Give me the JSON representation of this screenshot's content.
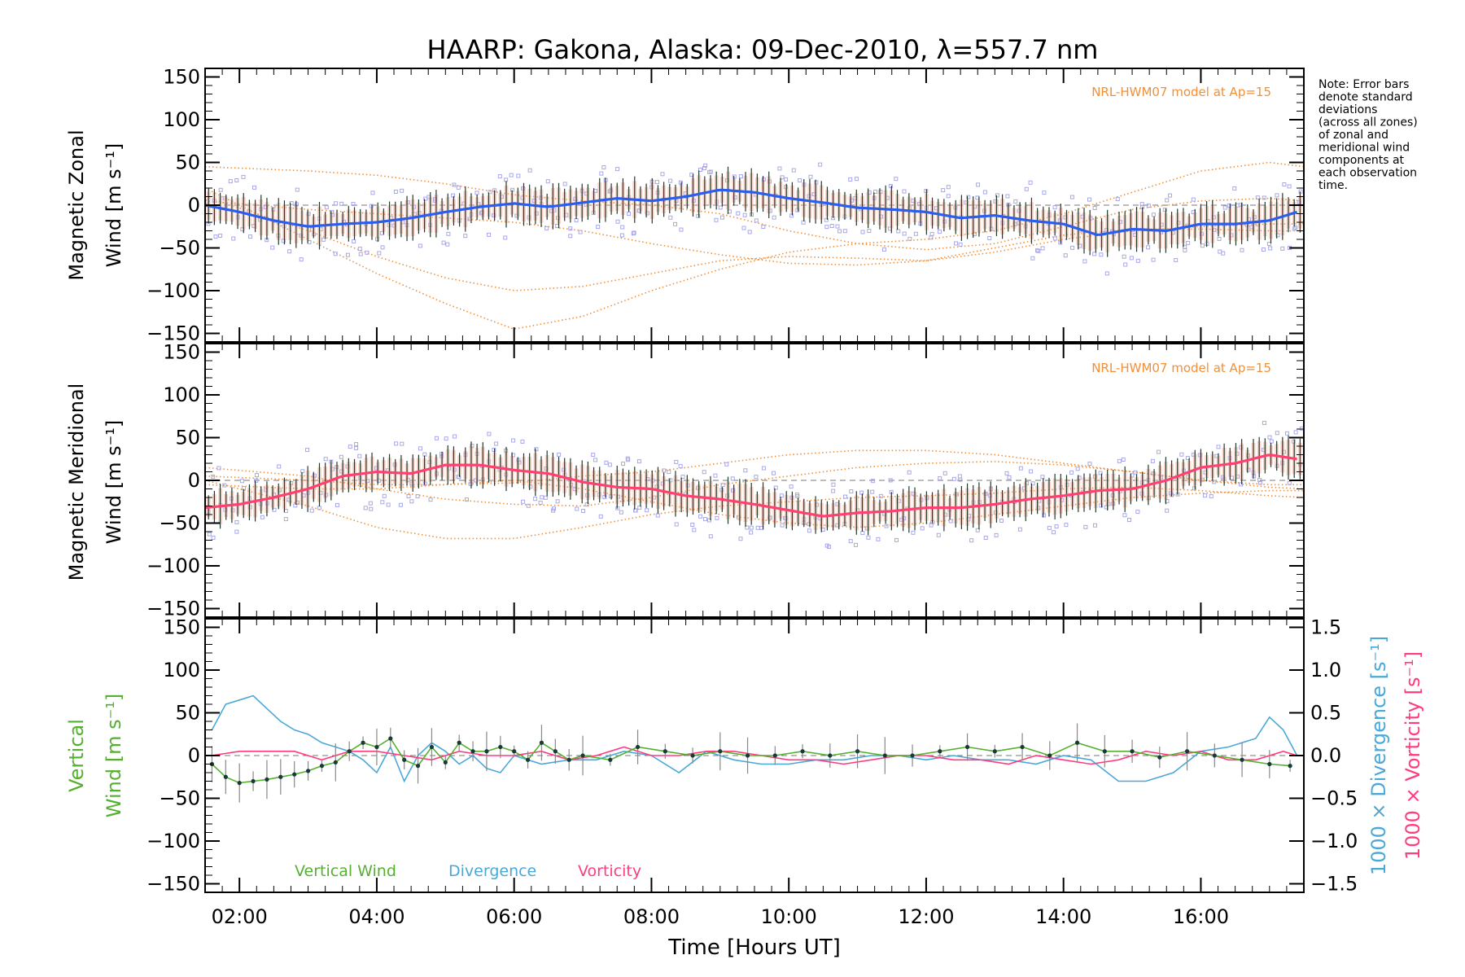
{
  "chart_data": {
    "type": "line",
    "title": "HAARP: Gakona,  Alaska: 09-Dec-2010, λ=557.7 nm",
    "xlabel": "Time [Hours UT]",
    "xlim": [
      1.5,
      17.5
    ],
    "x_ticks": [
      "02:00",
      "04:00",
      "06:00",
      "08:00",
      "10:00",
      "12:00",
      "14:00",
      "16:00"
    ],
    "note_lines": [
      "Note: Error bars",
      "denote standard",
      "deviations",
      "(across all zones)",
      "of zonal and",
      "meridional wind",
      "components at",
      "each observation",
      "time."
    ],
    "colors": {
      "zonal": "#2a5ef0",
      "meridional": "#ff4070",
      "vertical": "#55b030",
      "divergence": "#4aa8d8",
      "vorticity": "#ff3c80",
      "model": "#f0903a",
      "scatter": "#a8a8e8"
    },
    "panels": [
      {
        "id": "zonal",
        "ylabel_lines": [
          "Magnetic Zonal",
          "Wind [m s⁻¹]"
        ],
        "ylim": [
          -160,
          160
        ],
        "y_ticks": [
          "150",
          "100",
          "50",
          "0",
          "−50",
          "−100",
          "−150"
        ],
        "model_label": "NRL-HWM07 model at Ap=15",
        "series": [
          {
            "x": [
              1.5,
              2,
              2.5,
              3,
              3.5,
              4,
              4.5,
              5,
              5.5,
              6,
              6.5,
              7,
              7.5,
              8,
              8.5,
              9,
              9.5,
              10,
              10.5,
              11,
              11.5,
              12,
              12.5,
              13,
              13.5,
              14,
              14.5,
              15,
              15.5,
              16,
              16.5,
              17,
              17.4
            ],
            "y": [
              0,
              -8,
              -18,
              -25,
              -22,
              -20,
              -15,
              -8,
              -2,
              2,
              -2,
              3,
              8,
              5,
              10,
              18,
              15,
              8,
              3,
              -3,
              -5,
              -8,
              -15,
              -12,
              -18,
              -22,
              -35,
              -28,
              -30,
              -22,
              -22,
              -18,
              -8
            ]
          }
        ],
        "model_curves": [
          {
            "x": [
              1.5,
              3,
              4,
              5,
              6,
              7,
              8,
              9,
              10,
              11,
              12,
              13,
              14,
              15,
              16,
              17,
              17.5
            ],
            "y": [
              45,
              40,
              35,
              25,
              12,
              5,
              0,
              -10,
              -30,
              -45,
              -52,
              -45,
              -25,
              -5,
              5,
              8,
              5
            ]
          },
          {
            "x": [
              1.5,
              3,
              4,
              5,
              6,
              7,
              8,
              9,
              10,
              11,
              12,
              13,
              14,
              15,
              16,
              17,
              17.5
            ],
            "y": [
              20,
              -40,
              -80,
              -115,
              -145,
              -130,
              -100,
              -75,
              -55,
              -45,
              -40,
              -30,
              -10,
              15,
              40,
              50,
              45
            ]
          },
          {
            "x": [
              1.5,
              3,
              4,
              5,
              6,
              7,
              8,
              9,
              10,
              11,
              12,
              13,
              14,
              15,
              16,
              17,
              17.5
            ],
            "y": [
              10,
              -30,
              -60,
              -85,
              -100,
              -95,
              -80,
              -65,
              -60,
              -62,
              -65,
              -55,
              -40,
              -30,
              -25,
              -22,
              -22
            ]
          },
          {
            "x": [
              1.5,
              3,
              4,
              5,
              6,
              7,
              8,
              9,
              10,
              11,
              12,
              13,
              14,
              15,
              16,
              17,
              17.5
            ],
            "y": [
              5,
              -5,
              -10,
              -15,
              -20,
              -30,
              -45,
              -58,
              -68,
              -70,
              -65,
              -50,
              -35,
              -28,
              -28,
              -30,
              -30
            ]
          }
        ]
      },
      {
        "id": "meridional",
        "ylabel_lines": [
          "Magnetic Meridional",
          "Wind [m s⁻¹]"
        ],
        "ylim": [
          -160,
          160
        ],
        "y_ticks": [
          "150",
          "100",
          "50",
          "0",
          "−50",
          "−100",
          "−150"
        ],
        "model_label": "NRL-HWM07 model at Ap=15",
        "series": [
          {
            "x": [
              1.5,
              2,
              2.5,
              3,
              3.5,
              4,
              4.5,
              5,
              5.5,
              6,
              6.5,
              7,
              7.5,
              8,
              8.5,
              9,
              9.5,
              10,
              10.5,
              11,
              11.5,
              12,
              12.5,
              13,
              13.5,
              14,
              14.5,
              15,
              15.5,
              16,
              16.5,
              17,
              17.4
            ],
            "y": [
              -32,
              -28,
              -20,
              -10,
              5,
              10,
              8,
              18,
              18,
              12,
              8,
              -2,
              -8,
              -10,
              -18,
              -22,
              -28,
              -35,
              -42,
              -38,
              -36,
              -32,
              -32,
              -28,
              -22,
              -18,
              -12,
              -10,
              0,
              15,
              20,
              30,
              25
            ]
          }
        ],
        "model_curves": [
          {
            "x": [
              1.5,
              3,
              4,
              5,
              6,
              7,
              8,
              9,
              10,
              11,
              12,
              13,
              14,
              15,
              16,
              17,
              17.5
            ],
            "y": [
              15,
              5,
              -10,
              -22,
              -28,
              -30,
              -20,
              -5,
              5,
              15,
              20,
              22,
              18,
              10,
              0,
              -8,
              -10
            ]
          },
          {
            "x": [
              1.5,
              3,
              4,
              5,
              6,
              7,
              8,
              9,
              10,
              11,
              12,
              13,
              14,
              15,
              16,
              17,
              17.5
            ],
            "y": [
              0,
              -30,
              -55,
              -68,
              -68,
              -55,
              -40,
              -30,
              -25,
              -20,
              -18,
              -15,
              -10,
              -8,
              -12,
              -18,
              -20
            ]
          },
          {
            "x": [
              1.5,
              3,
              4,
              5,
              6,
              7,
              8,
              9,
              10,
              11,
              12,
              13,
              14,
              15,
              16,
              17,
              17.5
            ],
            "y": [
              5,
              0,
              -5,
              -5,
              -3,
              5,
              10,
              20,
              30,
              35,
              35,
              30,
              20,
              10,
              0,
              -5,
              -5
            ]
          },
          {
            "x": [
              1.5,
              3,
              4,
              5,
              6,
              7,
              8,
              9,
              10,
              11,
              12,
              13,
              14,
              15,
              16,
              17,
              17.5
            ],
            "y": [
              -5,
              -10,
              -10,
              -5,
              0,
              -10,
              -25,
              -40,
              -50,
              -55,
              -50,
              -40,
              -30,
              -20,
              -15,
              -12,
              -12
            ]
          }
        ]
      },
      {
        "id": "vertical",
        "ylabel_lines": [
          "Vertical",
          "Wind [m s⁻¹]"
        ],
        "ylim": [
          -160,
          160
        ],
        "y_ticks": [
          "150",
          "100",
          "50",
          "0",
          "−50",
          "−100",
          "−150"
        ],
        "y2_label_div": "1000 × Divergence [s⁻¹]",
        "y2_label_vort": "1000 × Vorticity [s⁻¹]",
        "y2lim": [
          -1.6,
          1.6
        ],
        "y2_ticks": [
          "1.5",
          "1.0",
          "0.5",
          "0.0",
          "−0.5",
          "−1.0",
          "−1.5"
        ],
        "legend": [
          "Vertical Wind",
          "Divergence",
          "Vorticity"
        ],
        "series": [
          {
            "name": "Vertical Wind",
            "x": [
              1.6,
              1.8,
              2,
              2.2,
              2.4,
              2.6,
              2.8,
              3,
              3.2,
              3.4,
              3.6,
              3.8,
              4,
              4.2,
              4.4,
              4.6,
              4.8,
              5,
              5.2,
              5.4,
              5.6,
              5.8,
              6,
              6.2,
              6.4,
              6.6,
              6.8,
              7,
              7.4,
              7.8,
              8.2,
              8.6,
              9,
              9.4,
              9.8,
              10.2,
              10.6,
              11,
              11.4,
              11.8,
              12.2,
              12.6,
              13,
              13.4,
              13.8,
              14.2,
              14.6,
              15,
              15.4,
              15.8,
              16.2,
              16.6,
              17,
              17.3
            ],
            "y": [
              -10,
              -25,
              -32,
              -30,
              -28,
              -25,
              -22,
              -18,
              -12,
              -8,
              5,
              15,
              10,
              20,
              -5,
              -12,
              10,
              -8,
              15,
              5,
              5,
              10,
              5,
              -5,
              15,
              5,
              -5,
              0,
              -5,
              10,
              5,
              0,
              5,
              0,
              0,
              5,
              0,
              5,
              0,
              0,
              5,
              10,
              5,
              10,
              0,
              15,
              5,
              5,
              -2,
              5,
              0,
              -5,
              -10,
              -12
            ]
          },
          {
            "name": "Divergence",
            "x": [
              1.6,
              1.8,
              2,
              2.2,
              2.4,
              2.6,
              2.8,
              3,
              3.2,
              3.4,
              3.6,
              3.8,
              4,
              4.2,
              4.4,
              4.6,
              4.8,
              5,
              5.2,
              5.4,
              5.6,
              5.8,
              6,
              6.4,
              6.8,
              7.2,
              7.6,
              8,
              8.4,
              8.8,
              9.2,
              9.6,
              10,
              10.4,
              10.8,
              11.2,
              11.6,
              12,
              12.4,
              12.8,
              13.2,
              13.6,
              14,
              14.4,
              14.8,
              15.2,
              15.6,
              16,
              16.4,
              16.8,
              17,
              17.2,
              17.4
            ],
            "y": [
              0.3,
              0.6,
              0.65,
              0.7,
              0.55,
              0.4,
              0.3,
              0.25,
              0.15,
              0.1,
              0.05,
              -0.05,
              -0.2,
              0.1,
              -0.3,
              0.0,
              0.15,
              0.05,
              -0.1,
              0.0,
              -0.15,
              -0.2,
              0.0,
              -0.1,
              -0.05,
              -0.05,
              0.05,
              0.0,
              -0.2,
              0.05,
              -0.05,
              -0.1,
              -0.1,
              -0.05,
              -0.05,
              0.0,
              0.0,
              -0.05,
              0.0,
              -0.05,
              -0.05,
              -0.1,
              0.0,
              -0.05,
              -0.3,
              -0.3,
              -0.2,
              0.05,
              0.1,
              0.2,
              0.45,
              0.3,
              0.0
            ]
          },
          {
            "name": "Vorticity",
            "x": [
              1.6,
              2,
              2.4,
              2.8,
              3.2,
              3.6,
              4,
              4.4,
              4.8,
              5.2,
              5.6,
              6,
              6.4,
              6.8,
              7.2,
              7.6,
              8,
              8.4,
              8.8,
              9.2,
              9.6,
              10,
              10.4,
              10.8,
              11.2,
              11.6,
              12,
              12.4,
              12.8,
              13.2,
              13.6,
              14,
              14.4,
              14.8,
              15.2,
              15.6,
              16,
              16.4,
              16.8,
              17.2,
              17.4
            ],
            "y": [
              0.0,
              0.05,
              0.05,
              0.05,
              -0.05,
              0.05,
              0.05,
              0.0,
              -0.05,
              0.05,
              0.0,
              0.0,
              0.05,
              -0.05,
              0.0,
              0.1,
              0.0,
              0.0,
              0.05,
              0.05,
              0.0,
              -0.05,
              -0.05,
              -0.1,
              -0.05,
              0.0,
              0.0,
              -0.05,
              -0.05,
              -0.1,
              0.0,
              -0.05,
              -0.1,
              -0.05,
              0.05,
              0.0,
              0.05,
              -0.05,
              -0.05,
              0.05,
              0.0
            ]
          }
        ]
      }
    ]
  }
}
